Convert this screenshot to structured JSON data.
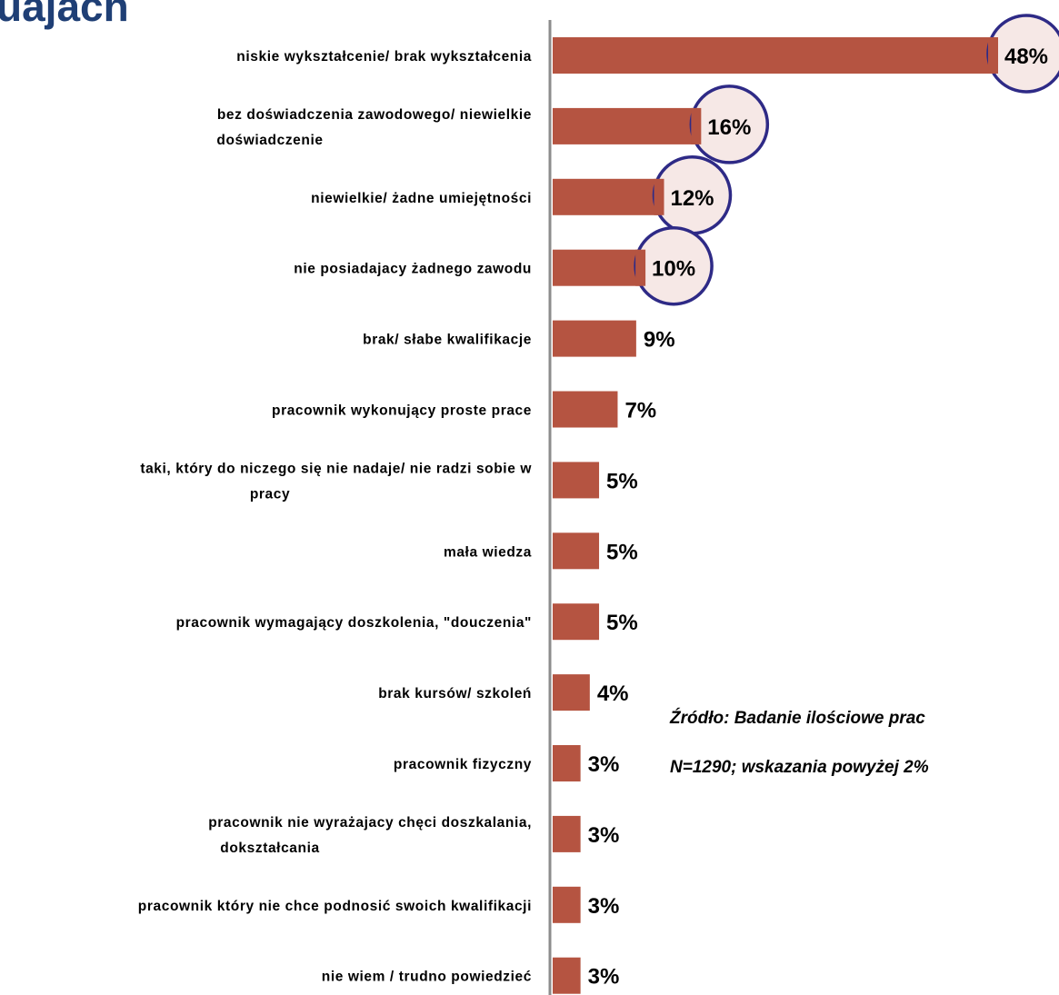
{
  "title_fragment": "uajach",
  "source": {
    "line1": "Źródło: Badanie ilościowe prac",
    "line2": "N=1290; wskazania powyżej 2%"
  },
  "colors": {
    "bar": "#b55441",
    "axis": "#8c8c8c",
    "title": "#1f3f75",
    "circle_stroke": "#2e2a86",
    "circle_fill": "#f6e8e6"
  },
  "chart_data": {
    "type": "bar",
    "orientation": "horizontal",
    "grid": false,
    "categories": [
      [
        "niskie wykształcenie/ brak wykształcenia"
      ],
      [
        "bez doświadczenia zawodowego/ niewielkie",
        "doświadczenie"
      ],
      [
        "niewielkie/ żadne umiejętności"
      ],
      [
        "nie posiadajacy żadnego zawodu"
      ],
      [
        "brak/ słabe kwalifikacje"
      ],
      [
        "pracownik wykonujący proste prace"
      ],
      [
        "taki, który do niczego się nie nadaje/ nie radzi sobie w",
        "pracy"
      ],
      [
        "mała wiedza"
      ],
      [
        "pracownik wymagający doszkolenia, \"douczenia\""
      ],
      [
        "brak kursów/ szkoleń"
      ],
      [
        "pracownik fizyczny"
      ],
      [
        "pracownik nie wyrażajacy chęci doszkalania,",
        "dokształcania"
      ],
      [
        "pracownik który nie chce podnosić swoich kwalifikacji"
      ],
      [
        "nie wiem / trudno powiedzieć"
      ]
    ],
    "values": [
      48,
      16,
      12,
      10,
      9,
      7,
      5,
      5,
      5,
      4,
      3,
      3,
      3,
      3
    ],
    "data_labels": [
      "48%",
      "16%",
      "12%",
      "10%",
      "9%",
      "7%",
      "5%",
      "5%",
      "5%",
      "4%",
      "3%",
      "3%",
      "3%",
      "3%"
    ],
    "highlighted": [
      true,
      true,
      true,
      true,
      false,
      false,
      false,
      false,
      false,
      false,
      false,
      false,
      false,
      false
    ],
    "value_unit": "%",
    "xlim": [
      0,
      48
    ]
  }
}
